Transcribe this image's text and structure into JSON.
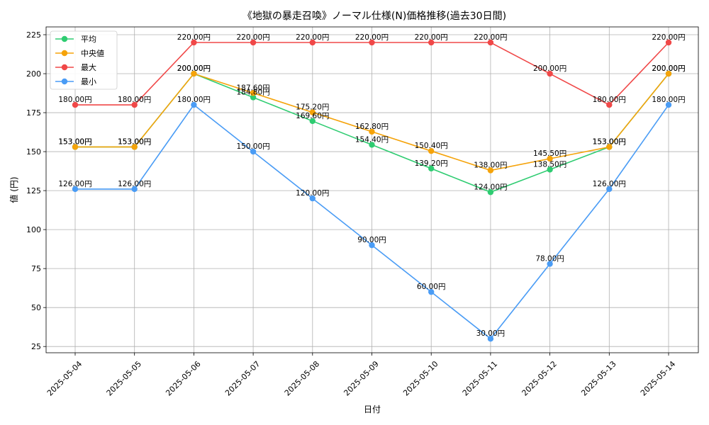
{
  "chart_data": {
    "type": "line",
    "title": "《地獄の暴走召喚》ノーマル仕様(N)価格推移(過去30日間)",
    "xlabel": "日付",
    "ylabel": "値 (円)",
    "ylim": [
      21,
      230
    ],
    "yticks": [
      25,
      50,
      75,
      100,
      125,
      150,
      175,
      200,
      225
    ],
    "grid": true,
    "legend_position": "top-left",
    "value_suffix": "円",
    "categories": [
      "2025-05-04",
      "2025-05-05",
      "2025-05-06",
      "2025-05-07",
      "2025-05-08",
      "2025-05-09",
      "2025-05-10",
      "2025-05-11",
      "2025-05-12",
      "2025-05-13",
      "2025-05-14"
    ],
    "series": [
      {
        "name": "平均",
        "color": "#2ecc71",
        "values": [
          153.0,
          153.0,
          200.0,
          184.8,
          169.6,
          154.4,
          139.2,
          124.0,
          138.5,
          153.0,
          200.0
        ]
      },
      {
        "name": "中央値",
        "color": "#f5a30a",
        "values": [
          153.0,
          153.0,
          200.0,
          187.6,
          175.2,
          162.8,
          150.4,
          138.0,
          145.5,
          153.0,
          200.0
        ]
      },
      {
        "name": "最大",
        "color": "#f04848",
        "values": [
          180.0,
          180.0,
          220.0,
          220.0,
          220.0,
          220.0,
          220.0,
          220.0,
          200.0,
          180.0,
          220.0
        ]
      },
      {
        "name": "最小",
        "color": "#4a9cf5",
        "values": [
          126.0,
          126.0,
          180.0,
          150.0,
          120.0,
          90.0,
          60.0,
          30.0,
          78.0,
          126.0,
          180.0
        ]
      }
    ]
  }
}
